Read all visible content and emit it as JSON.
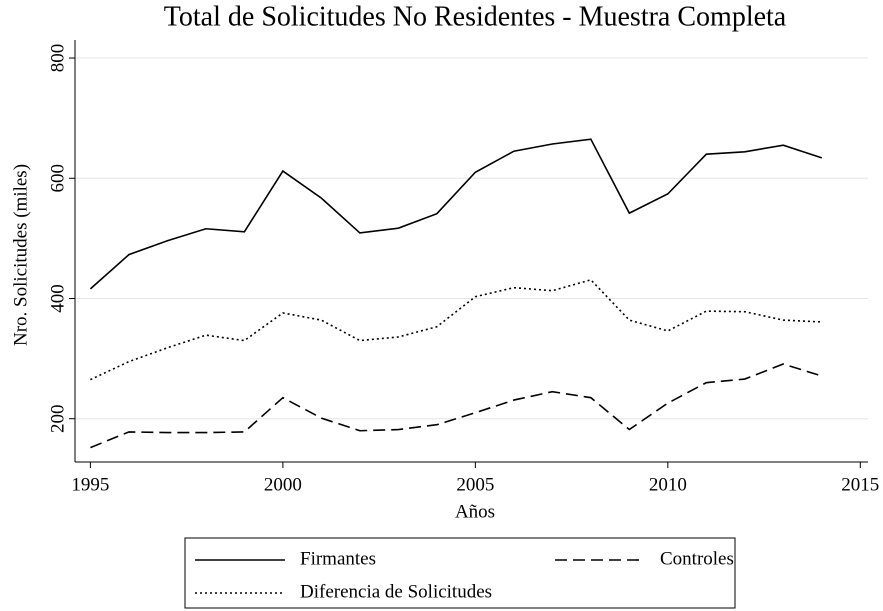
{
  "chart_data": {
    "type": "line",
    "title": "Total de Solicitudes No Residentes - Muestra Completa",
    "xlabel": "Años",
    "ylabel": "Nro. Solicitudes (miles)",
    "x": [
      1995,
      1996,
      1997,
      1998,
      1999,
      2000,
      2001,
      2002,
      2003,
      2004,
      2005,
      2006,
      2007,
      2008,
      2009,
      2010,
      2011,
      2012,
      2013,
      2014
    ],
    "series": [
      {
        "name": "Firmantes",
        "color": "#000000",
        "dash": "solid",
        "values": [
          416,
          473,
          496,
          516,
          511,
          612,
          567,
          509,
          517,
          541,
          610,
          645,
          657,
          665,
          542,
          574,
          640,
          644,
          655,
          634
        ]
      },
      {
        "name": "Controles",
        "color": "#000000",
        "dash": "dashed",
        "values": [
          152,
          178,
          177,
          177,
          178,
          235,
          201,
          180,
          182,
          190,
          210,
          231,
          245,
          235,
          182,
          226,
          260,
          266,
          291,
          271
        ]
      },
      {
        "name": "Diferencia de Solicitudes",
        "color": "#000000",
        "dash": "dotted",
        "values": [
          265,
          295,
          318,
          339,
          330,
          376,
          364,
          330,
          336,
          353,
          403,
          418,
          413,
          431,
          364,
          346,
          379,
          378,
          364,
          361
        ]
      }
    ],
    "xlim": [
      1994.6,
      2015.2
    ],
    "xticks": [
      1995,
      2000,
      2005,
      2010,
      2015
    ],
    "ylim": [
      128,
      830
    ],
    "yticks": [
      200,
      400,
      600,
      800
    ],
    "grid": true,
    "legend": "bottom"
  }
}
